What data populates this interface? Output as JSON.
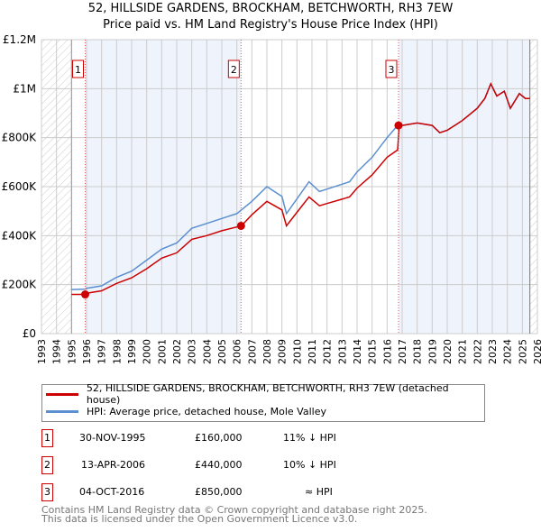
{
  "title": "52, HILLSIDE GARDENS, BROCKHAM, BETCHWORTH, RH3 7EW",
  "subtitle": "Price paid vs. HM Land Registry's House Price Index (HPI)",
  "colors": {
    "property": "#cc0000",
    "hpi": "#5b8fd0",
    "shade": "#eef3fc"
  },
  "chart_data": {
    "type": "line",
    "title": "52, HILLSIDE GARDENS, BROCKHAM, BETCHWORTH, RH3 7EW",
    "xlim": [
      1993,
      2026
    ],
    "ylim": [
      0,
      1200000
    ],
    "xticks": [
      "1993",
      "1994",
      "1995",
      "1996",
      "1997",
      "1998",
      "1999",
      "2000",
      "2001",
      "2002",
      "2003",
      "2004",
      "2005",
      "2006",
      "2007",
      "2008",
      "2009",
      "2010",
      "2011",
      "2012",
      "2013",
      "2014",
      "2015",
      "2016",
      "2017",
      "2018",
      "2019",
      "2020",
      "2021",
      "2022",
      "2023",
      "2024",
      "2025",
      "2026"
    ],
    "yticks": [
      {
        "v": 0,
        "label": "£0"
      },
      {
        "v": 200000,
        "label": "£200K"
      },
      {
        "v": 400000,
        "label": "£400K"
      },
      {
        "v": 600000,
        "label": "£600K"
      },
      {
        "v": 800000,
        "label": "£800K"
      },
      {
        "v": 1000000,
        "label": "£1M"
      },
      {
        "v": 1200000,
        "label": "£1.2M"
      }
    ],
    "data_range": [
      1995.0,
      2025.5
    ],
    "series": [
      {
        "name": "HPI: Average price, detached house, Mole Valley",
        "color": "#5b8fd0",
        "x": [
          1995,
          1995.9,
          1996,
          1997,
          1998,
          1999,
          2000,
          2001,
          2002,
          2003,
          2004,
          2005,
          2006,
          2007,
          2008,
          2009,
          2009.3,
          2010,
          2010.8,
          2011.5,
          2012,
          2013,
          2013.5,
          2014,
          2015,
          2016,
          2016.7,
          2017,
          2018,
          2019,
          2019.5,
          2020,
          2021,
          2022,
          2022.5,
          2022.9,
          2023.3,
          2023.8,
          2024.2,
          2024.8,
          2025.2,
          2025.5
        ],
        "y": [
          180000,
          182000,
          185000,
          195000,
          230000,
          255000,
          300000,
          345000,
          370000,
          430000,
          450000,
          470000,
          490000,
          540000,
          600000,
          560000,
          490000,
          550000,
          620000,
          580000,
          590000,
          610000,
          620000,
          660000,
          720000,
          800000,
          850000,
          850000,
          860000,
          850000,
          820000,
          830000,
          870000,
          920000,
          960000,
          1020000,
          970000,
          990000,
          920000,
          980000,
          960000,
          960000
        ]
      },
      {
        "name": "52, HILLSIDE GARDENS, BROCKHAM, BETCHWORTH, RH3 7EW (detached house)",
        "color": "#cc0000",
        "x": [
          1995,
          1995.9,
          1996,
          1997,
          1998,
          1999,
          2000,
          2001,
          2002,
          2003,
          2004,
          2005,
          2006.3,
          2007,
          2008,
          2009,
          2009.3,
          2010,
          2010.8,
          2011.5,
          2012,
          2013,
          2013.5,
          2014,
          2015,
          2016,
          2016.7,
          2016.8,
          2017,
          2018,
          2019,
          2019.5,
          2020,
          2021,
          2022,
          2022.5,
          2022.9,
          2023.3,
          2023.8,
          2024.2,
          2024.8,
          2025.2,
          2025.5
        ],
        "y": [
          160000,
          160000,
          165000,
          175000,
          205000,
          228000,
          265000,
          308000,
          330000,
          385000,
          400000,
          420000,
          440000,
          485000,
          540000,
          505000,
          440000,
          495000,
          558000,
          522000,
          531000,
          549000,
          558000,
          594000,
          648000,
          720000,
          750000,
          850000,
          850000,
          860000,
          850000,
          820000,
          830000,
          870000,
          920000,
          960000,
          1020000,
          970000,
          990000,
          920000,
          980000,
          960000,
          960000
        ]
      }
    ],
    "sales": [
      {
        "id": "1",
        "x": 1995.91,
        "price": 160000,
        "date": "30-NOV-1995",
        "price_label": "£160,000",
        "rel": "11% ↓ HPI"
      },
      {
        "id": "2",
        "x": 2006.28,
        "price": 440000,
        "date": "13-APR-2006",
        "price_label": "£440,000",
        "rel": "10% ↓ HPI"
      },
      {
        "id": "3",
        "x": 2016.76,
        "price": 850000,
        "date": "04-OCT-2016",
        "price_label": "£850,000",
        "rel": "≈ HPI"
      }
    ],
    "legend_placement": "below"
  },
  "footer": [
    "Contains HM Land Registry data © Crown copyright and database right 2025.",
    "This data is licensed under the Open Government Licence v3.0."
  ]
}
